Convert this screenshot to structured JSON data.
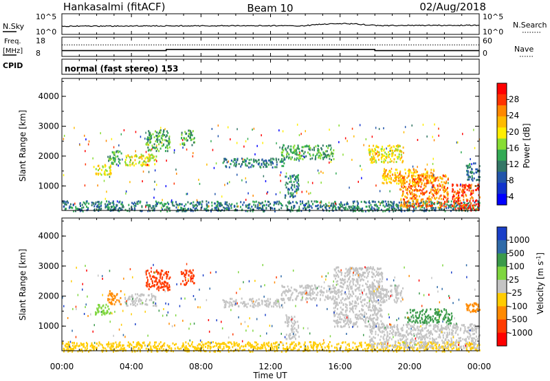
{
  "header": {
    "radar_title": "Hankasalmi (fitACF)",
    "beam_label": "Beam 10",
    "date_label": "02/Aug/2018"
  },
  "noise_panel": {
    "left_label": "N.Sky",
    "left_tick_top": "10^5",
    "left_tick_bottom": "10^0",
    "right_tick_top": "10^5",
    "right_tick_bottom": "10^0",
    "right_label": "N.Search"
  },
  "freq_panel": {
    "left_label_line1": "Freq.",
    "left_label_line2": "[MHz]",
    "left_tick_top": "18",
    "left_tick_bottom": "8",
    "right_tick_top": "60",
    "right_tick_bottom": "0",
    "right_label": "Nave"
  },
  "cpid_panel": {
    "label": "CPID",
    "mode_text": "normal (fast stereo) 153"
  },
  "x_axis": {
    "label": "Time UT",
    "ticks": [
      "00:00",
      "04:00",
      "08:00",
      "12:00",
      "16:00",
      "20:00",
      "00:00"
    ],
    "range_hours": [
      0,
      24
    ]
  },
  "power_colorbar": {
    "label": "Power [dB]",
    "ticks": [
      "28",
      "24",
      "20",
      "16",
      "12",
      "8",
      "4"
    ],
    "colors": [
      "#ff0000",
      "#ff3300",
      "#ff8800",
      "#ffbb00",
      "#ffee00",
      "#88dd33",
      "#33aa55",
      "#337766",
      "#2255aa",
      "#1133cc",
      "#0000ff"
    ]
  },
  "velocity_colorbar": {
    "label": "Velocity [m s^-1]",
    "ticks": [
      "1000",
      "500",
      "100",
      "25",
      "-25",
      "-100",
      "-500",
      "-1000"
    ],
    "colors": [
      "#1a3fc8",
      "#2f6aa8",
      "#3a9a4a",
      "#7fd63f",
      "#c4c4c4",
      "#ffcc00",
      "#ff8a00",
      "#ff3b00",
      "#ff0000"
    ]
  },
  "chart_data": [
    {
      "type": "heatmap",
      "name": "power",
      "y_axis_label": "Slant Range [km]",
      "y_ticks": [
        1000,
        2000,
        3000,
        4000
      ],
      "ylim": [
        180,
        4600
      ],
      "xlim_hours": [
        0,
        24
      ],
      "regions": [
        {
          "t0": 0.0,
          "t1": 24.0,
          "r0": 180,
          "r1": 520,
          "level": 3
        },
        {
          "t0": 1.8,
          "t1": 2.8,
          "r0": 1400,
          "r1": 1750,
          "level": 6
        },
        {
          "t0": 2.6,
          "t1": 3.4,
          "r0": 1750,
          "r1": 2200,
          "level": 4
        },
        {
          "t0": 3.6,
          "t1": 5.4,
          "r0": 1700,
          "r1": 2100,
          "level": 6
        },
        {
          "t0": 4.8,
          "t1": 6.2,
          "r0": 2200,
          "r1": 2900,
          "level": 4
        },
        {
          "t0": 6.8,
          "t1": 7.6,
          "r0": 2400,
          "r1": 2900,
          "level": 4
        },
        {
          "t0": 9.2,
          "t1": 12.8,
          "r0": 1650,
          "r1": 1950,
          "level": 3
        },
        {
          "t0": 12.6,
          "t1": 15.6,
          "r0": 1900,
          "r1": 2400,
          "level": 4
        },
        {
          "t0": 12.8,
          "t1": 13.6,
          "r0": 600,
          "r1": 1400,
          "level": 3
        },
        {
          "t0": 17.6,
          "t1": 19.6,
          "r0": 1800,
          "r1": 2400,
          "level": 6
        },
        {
          "t0": 18.4,
          "t1": 21.4,
          "r0": 1100,
          "r1": 1600,
          "level": 7
        },
        {
          "t0": 19.4,
          "t1": 22.2,
          "r0": 300,
          "r1": 1400,
          "level": 8
        },
        {
          "t0": 22.4,
          "t1": 24.0,
          "r0": 200,
          "r1": 1100,
          "level": 9
        },
        {
          "t0": 23.2,
          "t1": 24.0,
          "r0": 1200,
          "r1": 1800,
          "level": 3
        }
      ]
    },
    {
      "type": "heatmap",
      "name": "velocity",
      "y_axis_label": "Slant Range [km]",
      "y_ticks": [
        1000,
        2000,
        3000,
        4000
      ],
      "ylim": [
        180,
        4600
      ],
      "xlim_hours": [
        0,
        24
      ],
      "regions": [
        {
          "t0": 0.0,
          "t1": 24.0,
          "r0": 180,
          "r1": 500,
          "level": 5
        },
        {
          "t0": 1.8,
          "t1": 2.8,
          "r0": 1400,
          "r1": 1750,
          "level": 3
        },
        {
          "t0": 2.6,
          "t1": 3.4,
          "r0": 1750,
          "r1": 2200,
          "level": 6
        },
        {
          "t0": 3.6,
          "t1": 5.4,
          "r0": 1700,
          "r1": 2100,
          "level": 4
        },
        {
          "t0": 4.8,
          "t1": 6.2,
          "r0": 2200,
          "r1": 2900,
          "level": 7
        },
        {
          "t0": 6.8,
          "t1": 7.6,
          "r0": 2400,
          "r1": 2900,
          "level": 7
        },
        {
          "t0": 9.2,
          "t1": 12.8,
          "r0": 1650,
          "r1": 1950,
          "level": 4
        },
        {
          "t0": 12.6,
          "t1": 15.6,
          "r0": 1900,
          "r1": 2400,
          "level": 4
        },
        {
          "t0": 12.8,
          "t1": 13.6,
          "r0": 600,
          "r1": 1400,
          "level": 4
        },
        {
          "t0": 15.6,
          "t1": 18.4,
          "r0": 1000,
          "r1": 3000,
          "level": 4
        },
        {
          "t0": 17.6,
          "t1": 19.6,
          "r0": 1800,
          "r1": 2400,
          "level": 4
        },
        {
          "t0": 19.8,
          "t1": 22.4,
          "r0": 1100,
          "r1": 1600,
          "level": 2
        },
        {
          "t0": 17.6,
          "t1": 24.0,
          "r0": 300,
          "r1": 1100,
          "level": 4
        },
        {
          "t0": 23.2,
          "t1": 24.0,
          "r0": 1500,
          "r1": 1800,
          "level": 6
        }
      ]
    }
  ]
}
